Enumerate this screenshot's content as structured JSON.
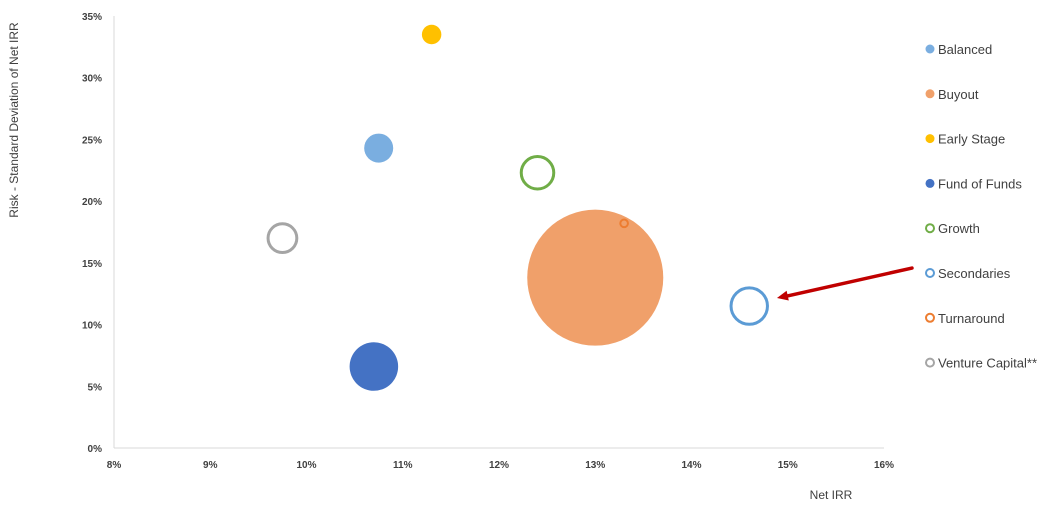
{
  "chart_data": {
    "type": "bubble",
    "xlabel": "Net IRR",
    "ylabel": "Risk - Standard Deviation of Net IRR",
    "xlim": [
      0.08,
      0.16
    ],
    "ylim": [
      0,
      0.35
    ],
    "x_ticks": [
      {
        "value": 0.08,
        "label": "8%"
      },
      {
        "value": 0.09,
        "label": "9%"
      },
      {
        "value": 0.1,
        "label": "10%"
      },
      {
        "value": 0.11,
        "label": "11%"
      },
      {
        "value": 0.12,
        "label": "12%"
      },
      {
        "value": 0.13,
        "label": "13%"
      },
      {
        "value": 0.14,
        "label": "14%"
      },
      {
        "value": 0.15,
        "label": "15%"
      },
      {
        "value": 0.16,
        "label": "16%"
      }
    ],
    "y_ticks": [
      {
        "value": 0.0,
        "label": "0%"
      },
      {
        "value": 0.05,
        "label": "5%"
      },
      {
        "value": 0.1,
        "label": "10%"
      },
      {
        "value": 0.15,
        "label": "15%"
      },
      {
        "value": 0.2,
        "label": "20%"
      },
      {
        "value": 0.25,
        "label": "25%"
      },
      {
        "value": 0.3,
        "label": "30%"
      },
      {
        "value": 0.35,
        "label": "35%"
      }
    ],
    "grid": false,
    "legend_position": "right",
    "series": [
      {
        "name": "Balanced",
        "x": 0.1075,
        "y": 0.243,
        "size": 1.0,
        "filled": true,
        "color": "#7AAEE0"
      },
      {
        "name": "Buyout",
        "x": 0.13,
        "y": 0.138,
        "size": 22.0,
        "filled": true,
        "color": "#F0A06A"
      },
      {
        "name": "Early Stage",
        "x": 0.113,
        "y": 0.335,
        "size": 0.45,
        "filled": true,
        "color": "#FFC000"
      },
      {
        "name": "Fund of Funds",
        "x": 0.107,
        "y": 0.066,
        "size": 2.8,
        "filled": true,
        "color": "#4472C4"
      },
      {
        "name": "Growth",
        "x": 0.124,
        "y": 0.223,
        "size": 1.5,
        "filled": false,
        "color": "#70AD47"
      },
      {
        "name": "Secondaries",
        "x": 0.146,
        "y": 0.115,
        "size": 1.85,
        "filled": false,
        "color": "#5B9BD5"
      },
      {
        "name": "Turnaround",
        "x": 0.133,
        "y": 0.182,
        "size": 0.11,
        "filled": false,
        "color": "#ED7D31"
      },
      {
        "name": "Venture Capital**",
        "x": 0.0975,
        "y": 0.17,
        "size": 1.2,
        "filled": false,
        "color": "#A5A5A5"
      }
    ],
    "annotation": {
      "type": "arrow",
      "color": "#C00000",
      "from_series": "Secondaries",
      "direction": "from-legend"
    }
  }
}
